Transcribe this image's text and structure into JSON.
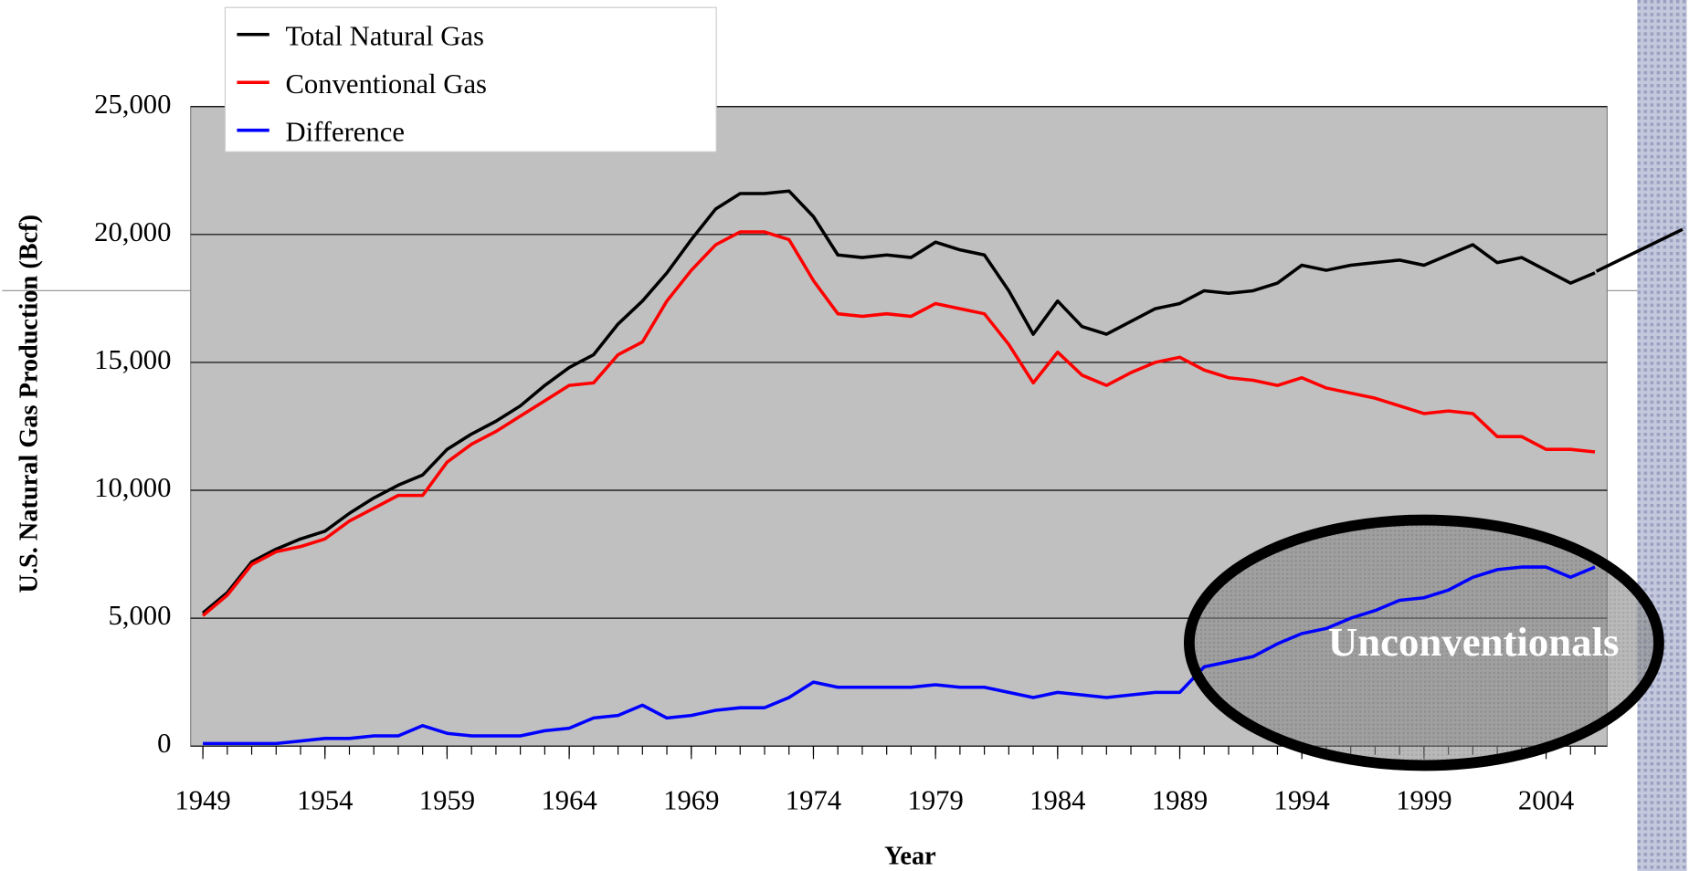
{
  "chart_data": {
    "type": "line",
    "x_label": "Year",
    "y_label": "U.S. Natural Gas Production (Bcf)",
    "annotation": "Unconventionals",
    "x": [
      1949,
      1950,
      1951,
      1952,
      1953,
      1954,
      1955,
      1956,
      1957,
      1958,
      1959,
      1960,
      1961,
      1962,
      1963,
      1964,
      1965,
      1966,
      1967,
      1968,
      1969,
      1970,
      1971,
      1972,
      1973,
      1974,
      1975,
      1976,
      1977,
      1978,
      1979,
      1980,
      1981,
      1982,
      1983,
      1984,
      1985,
      1986,
      1987,
      1988,
      1989,
      1990,
      1991,
      1992,
      1993,
      1994,
      1995,
      1996,
      1997,
      1998,
      1999,
      2000,
      2001,
      2002,
      2003,
      2004,
      2005,
      2006
    ],
    "xlim": [
      1948.5,
      2006.5
    ],
    "xticks": [
      1949,
      1954,
      1959,
      1964,
      1969,
      1974,
      1979,
      1984,
      1989,
      1994,
      1999,
      2004
    ],
    "ylim": [
      0,
      25000
    ],
    "yticks": [
      0,
      {
        "value": 5000,
        "label": "5,000"
      },
      {
        "value": 10000,
        "label": "10,000"
      },
      {
        "value": 15000,
        "label": "15,000"
      },
      {
        "value": 20000,
        "label": "20,000"
      },
      {
        "value": 25000,
        "label": "25,000"
      }
    ],
    "grid": true,
    "legend": "upper left",
    "series": [
      {
        "name": "Total Natural Gas",
        "color": "#000000",
        "values": [
          5200,
          6000,
          7200,
          7700,
          8100,
          8400,
          9100,
          9700,
          10200,
          10600,
          11600,
          12200,
          12700,
          13300,
          14100,
          14800,
          15300,
          16500,
          17400,
          18500,
          19800,
          21000,
          21600,
          21600,
          21700,
          20700,
          19200,
          19100,
          19200,
          19100,
          19700,
          19400,
          19200,
          17800,
          16100,
          17400,
          16400,
          16100,
          16600,
          17100,
          17300,
          17800,
          17700,
          17800,
          18100,
          18800,
          18600,
          18800,
          18900,
          19000,
          18800,
          19200,
          19600,
          18900,
          19100,
          18600,
          18100,
          18500
        ]
      },
      {
        "name": "Conventional Gas",
        "color": "#ff0000",
        "values": [
          5100,
          5900,
          7100,
          7600,
          7800,
          8100,
          8800,
          9300,
          9800,
          9800,
          11100,
          11800,
          12300,
          12900,
          13500,
          14100,
          14200,
          15300,
          15800,
          17400,
          18600,
          19600,
          20100,
          20100,
          19800,
          18200,
          16900,
          16800,
          16900,
          16800,
          17300,
          17100,
          16900,
          15700,
          14200,
          15400,
          14500,
          14100,
          14600,
          15000,
          15200,
          14700,
          14400,
          14300,
          14100,
          14400,
          14000,
          13800,
          13600,
          13300,
          13000,
          13100,
          13000,
          12100,
          12100,
          11600,
          11600,
          11500
        ]
      },
      {
        "name": "Difference",
        "color": "#0000ff",
        "values": [
          100,
          100,
          100,
          100,
          200,
          300,
          300,
          400,
          400,
          800,
          500,
          400,
          400,
          400,
          600,
          700,
          1100,
          1200,
          1600,
          1100,
          1200,
          1400,
          1500,
          1500,
          1900,
          2500,
          2300,
          2300,
          2300,
          2300,
          2400,
          2300,
          2300,
          2100,
          1900,
          2100,
          2000,
          1900,
          2000,
          2100,
          2100,
          3100,
          3300,
          3500,
          4000,
          4400,
          4600,
          5000,
          5300,
          5700,
          5800,
          6100,
          6600,
          6900,
          7000,
          7000,
          6600,
          7000
        ]
      }
    ]
  }
}
